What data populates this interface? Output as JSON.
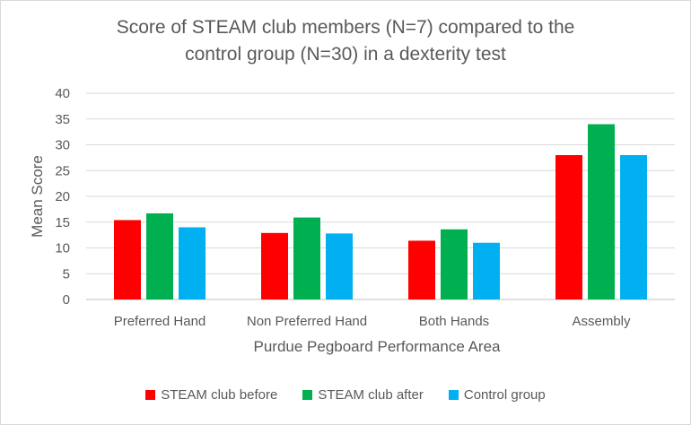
{
  "chart_data": {
    "type": "bar",
    "title": "Score of STEAM club members (N=7) compared to the\ncontrol group (N=30) in a dexterity test",
    "xlabel": "Purdue Pegboard Performance Area",
    "ylabel": "Mean Score",
    "ylim": [
      0,
      40
    ],
    "yticks": [
      0,
      5,
      10,
      15,
      20,
      25,
      30,
      35,
      40
    ],
    "grid": true,
    "legend_position": "bottom",
    "categories": [
      "Preferred Hand",
      "Non Preferred Hand",
      "Both Hands",
      "Assembly"
    ],
    "series": [
      {
        "name": "STEAM club before",
        "color": "#ff0000",
        "values": [
          15.4,
          12.9,
          11.4,
          28.0
        ]
      },
      {
        "name": "STEAM club after",
        "color": "#00b050",
        "values": [
          16.7,
          15.9,
          13.6,
          34.0
        ]
      },
      {
        "name": "Control group",
        "color": "#00b0f0",
        "values": [
          14.0,
          12.8,
          11.0,
          28.0
        ]
      }
    ]
  }
}
